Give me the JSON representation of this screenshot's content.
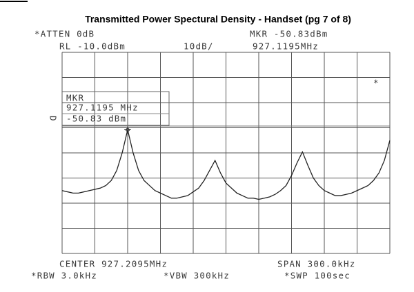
{
  "chart_data": {
    "type": "line",
    "title": "Transmitted Power Spectural Density  - Handset (pg 7 of  8)",
    "annotations": {
      "atten": "*ATTEN 0dB",
      "mkr_top": "MKR -50.83dBm",
      "rl": "RL -10.0dBm",
      "scale": "10dB/",
      "mkr_freq": "927.1195MHz",
      "star": "*",
      "mkr_label": "MKR",
      "mkr_box_freq": "927.1195 MHz",
      "mkr_box_level": "-50.83 dBm",
      "d": "D",
      "center": "CENTER 927.2095MHz",
      "span": "SPAN 300.0kHz",
      "rbw": "*RBW 3.0kHz",
      "vbw": "*VBW 300kHz",
      "swp": "*SWP 100sec"
    },
    "x": [
      927.0595,
      927.0645,
      927.0695,
      927.0745,
      927.0795,
      927.0845,
      927.0895,
      927.0945,
      927.0995,
      927.1045,
      927.1095,
      927.1145,
      927.1195,
      927.1245,
      927.1295,
      927.1345,
      927.1395,
      927.1445,
      927.1495,
      927.1545,
      927.1595,
      927.1645,
      927.1695,
      927.1745,
      927.1795,
      927.1845,
      927.1895,
      927.1945,
      927.1995,
      927.2045,
      927.2095,
      927.2145,
      927.2195,
      927.2245,
      927.2295,
      927.2345,
      927.2395,
      927.2445,
      927.2495,
      927.2545,
      927.2595,
      927.2645,
      927.2695,
      927.2745,
      927.2795,
      927.2845,
      927.2895,
      927.2945,
      927.2995,
      927.3045,
      927.3095,
      927.3145,
      927.3195,
      927.3245,
      927.3295,
      927.3345,
      927.3395,
      927.3445,
      927.3495,
      927.3545,
      927.3595
    ],
    "values": [
      -75,
      -75.5,
      -76,
      -76,
      -75.5,
      -75,
      -74.5,
      -74,
      -73,
      -71,
      -67,
      -60,
      -50.83,
      -60,
      -67,
      -71,
      -73,
      -75,
      -76,
      -77,
      -78,
      -78,
      -77.5,
      -77,
      -75.5,
      -74,
      -71,
      -67,
      -63,
      -68,
      -72,
      -74,
      -76,
      -77,
      -78,
      -78,
      -78.5,
      -78,
      -77.5,
      -76.5,
      -75,
      -73,
      -69,
      -64,
      -59.6,
      -65,
      -70,
      -73,
      -75,
      -76,
      -77,
      -77,
      -76.5,
      -76,
      -75,
      -74,
      -73,
      -71,
      -68,
      -63,
      -55
    ],
    "color": "#222222",
    "marker": {
      "x": 927.1195,
      "y": -50.83
    },
    "xlim": [
      927.0595,
      927.3595
    ],
    "ylim": [
      -100,
      -20
    ]
  }
}
